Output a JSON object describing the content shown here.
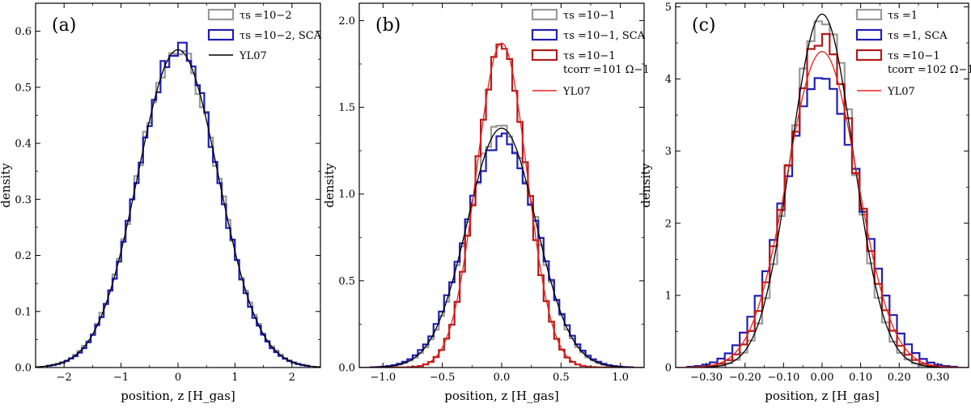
{
  "chart_data": [
    {
      "type": "line",
      "panel_label": "(a)",
      "xlabel": "position, z [H_gas]",
      "ylabel": "density",
      "xlim": [
        -2.5,
        2.5
      ],
      "ylim": [
        0,
        0.65
      ],
      "xticks": [
        -2,
        -1,
        0,
        1,
        2
      ],
      "yticks": [
        0.0,
        0.1,
        0.2,
        0.3,
        0.4,
        0.5,
        0.6
      ],
      "series": [
        {
          "name": "τ_s = 10^-2",
          "style": "hist",
          "color": "#999999",
          "sigma": 0.71,
          "peak": 0.565,
          "bins": 60
        },
        {
          "name": "τ_s = 10^-2, SCA",
          "style": "hist",
          "color": "#1f1fb4",
          "sigma": 0.7,
          "peak": 0.57,
          "bins": 60
        },
        {
          "name": "YL07",
          "style": "curve",
          "color": "#000000",
          "sigma": 0.705,
          "peak": 0.567
        }
      ],
      "legend": [
        {
          "text": "τs =10−2",
          "style": "hist",
          "color": "#999999"
        },
        {
          "text": "τs =10−2, SCA",
          "style": "hist",
          "color": "#1f1fb4"
        },
        {
          "text": "YL07",
          "style": "curve",
          "color": "#000000"
        }
      ]
    },
    {
      "type": "line",
      "panel_label": "(b)",
      "xlabel": "position, z [H_gas]",
      "ylabel": "density",
      "xlim": [
        -1.2,
        1.2
      ],
      "ylim": [
        0,
        2.1
      ],
      "xticks": [
        -1.0,
        -0.5,
        0.0,
        0.5,
        1.0
      ],
      "yticks": [
        0.0,
        0.5,
        1.0,
        1.5,
        2.0
      ],
      "series": [
        {
          "name": "τ_s = 10^-1",
          "style": "hist",
          "color": "#999999",
          "sigma": 0.29,
          "peak": 1.38,
          "bins": 50
        },
        {
          "name": "τ_s = 10^-1, SCA",
          "style": "hist",
          "color": "#1f1fb4",
          "sigma": 0.3,
          "peak": 1.33,
          "bins": 50
        },
        {
          "name": "τ_s = 10^-1, t_corr = 10^1 Ω^-1",
          "style": "hist",
          "color": "#b31b1b",
          "sigma": 0.21,
          "peak": 1.88,
          "bins": 50
        },
        {
          "name": "YL07 (black)",
          "style": "curve",
          "color": "#000000",
          "sigma": 0.29,
          "peak": 1.38
        },
        {
          "name": "YL07 (red)",
          "style": "curve",
          "color": "#e8231f",
          "sigma": 0.212,
          "peak": 1.87
        }
      ],
      "legend": [
        {
          "text": "τs =10−1",
          "style": "hist",
          "color": "#999999"
        },
        {
          "text": "τs =10−1, SCA",
          "style": "hist",
          "color": "#1f1fb4"
        },
        {
          "text": "τs =10−1",
          "text2": "tcorr =101 Ω−1",
          "style": "hist",
          "color": "#b31b1b"
        },
        {
          "text": "YL07",
          "style": "curve",
          "color": "#e8231f"
        }
      ]
    },
    {
      "type": "line",
      "panel_label": "(c)",
      "xlabel": "position, z [H_gas]",
      "ylabel": "density",
      "xlim": [
        -0.38,
        0.38
      ],
      "ylim": [
        0,
        5.05
      ],
      "xticks": [
        -0.3,
        -0.2,
        -0.1,
        0.0,
        0.1,
        0.2,
        0.3
      ],
      "yticks": [
        0,
        1,
        2,
        3,
        4,
        5
      ],
      "series": [
        {
          "name": "τ_s = 1",
          "style": "hist",
          "color": "#999999",
          "sigma": 0.081,
          "peak": 4.93,
          "bins": 36
        },
        {
          "name": "τ_s = 1, SCA",
          "style": "hist",
          "color": "#1f1fb4",
          "sigma": 0.099,
          "peak": 4.0,
          "bins": 36
        },
        {
          "name": "τ_s = 10^-1, t_corr = 10^2 Ω^-1",
          "style": "hist",
          "color": "#b31b1b",
          "sigma": 0.088,
          "peak": 4.55,
          "bins": 36
        },
        {
          "name": "YL07 (black)",
          "style": "curve",
          "color": "#000000",
          "sigma": 0.081,
          "peak": 4.9
        },
        {
          "name": "YL07 (red)",
          "style": "curve",
          "color": "#e8231f",
          "sigma": 0.091,
          "peak": 4.38
        }
      ],
      "legend": [
        {
          "text": "τs =1",
          "style": "hist",
          "color": "#999999"
        },
        {
          "text": "τs =1, SCA",
          "style": "hist",
          "color": "#1f1fb4"
        },
        {
          "text": "τs =10−1",
          "text2": "tcorr =102 Ω−1",
          "style": "hist",
          "color": "#b31b1b"
        },
        {
          "text": "YL07",
          "style": "curve",
          "color": "#e8231f"
        }
      ]
    }
  ]
}
